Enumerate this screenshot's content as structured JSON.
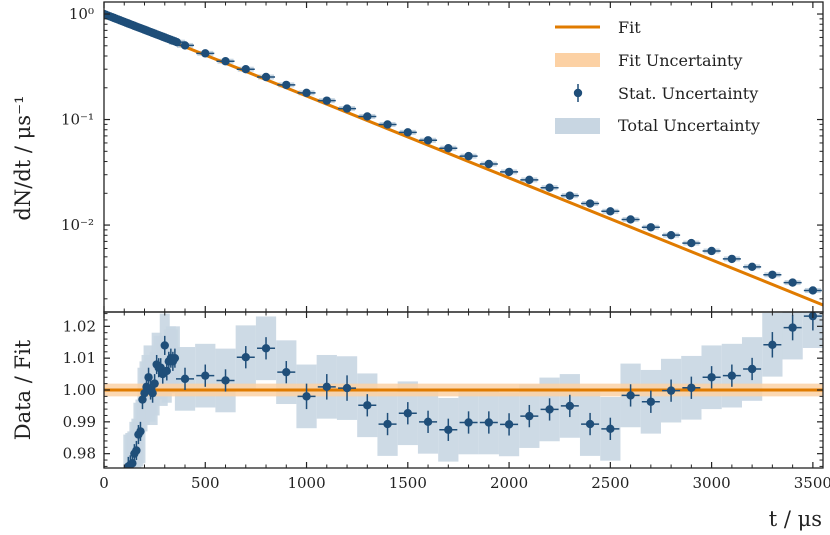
{
  "colors": {
    "fit": "#e07b00",
    "fit_band": "#fcd1a4",
    "stat": "#1f4e79",
    "total_band": "#c8d6e2",
    "axis": "#222222"
  },
  "chart_data": [
    {
      "type": "scatter",
      "panel": "top",
      "ylabel": "dN/dt / μs⁻¹",
      "yscale": "log",
      "ylim": [
        0.0015,
        1.3
      ],
      "xlim": [
        0,
        3550
      ],
      "y_tick_labels": [
        "10⁰",
        "10⁻¹",
        "10⁻²"
      ],
      "y_ticks": [
        1,
        0.1,
        0.01
      ],
      "fit_line": {
        "x": [
          0,
          3550
        ],
        "y": [
          1.0,
          0.00175
        ]
      },
      "series": [
        {
          "name": "Stat. Uncertainty",
          "x": [
            0,
            10,
            20,
            30,
            40,
            50,
            60,
            70,
            80,
            90,
            100,
            110,
            120,
            130,
            140,
            150,
            160,
            170,
            180,
            190,
            200,
            210,
            220,
            230,
            240,
            250,
            260,
            270,
            280,
            290,
            300,
            310,
            320,
            330,
            340,
            350,
            360,
            400,
            500,
            600,
            700,
            800,
            900,
            1000,
            1100,
            1200,
            1300,
            1400,
            1500,
            1600,
            1700,
            1800,
            1900,
            2000,
            2100,
            2200,
            2300,
            2400,
            2500,
            2600,
            2700,
            2800,
            2900,
            3000,
            3100,
            3200,
            3300,
            3400,
            3500
          ],
          "y": [
            1.0,
            0.982,
            0.965,
            0.949,
            0.933,
            0.917,
            0.901,
            0.886,
            0.871,
            0.856,
            0.841,
            0.827,
            0.813,
            0.799,
            0.786,
            0.772,
            0.759,
            0.747,
            0.734,
            0.722,
            0.71,
            0.698,
            0.686,
            0.675,
            0.663,
            0.652,
            0.641,
            0.63,
            0.62,
            0.609,
            0.599,
            0.589,
            0.579,
            0.57,
            0.56,
            0.551,
            0.541,
            0.504,
            0.424,
            0.357,
            0.3,
            0.253,
            0.213,
            0.179,
            0.151,
            0.127,
            0.107,
            0.0898,
            0.0756,
            0.0636,
            0.0535,
            0.045,
            0.0379,
            0.0319,
            0.0268,
            0.0226,
            0.019,
            0.016,
            0.0135,
            0.0113,
            0.00953,
            0.00802,
            0.00675,
            0.00568,
            0.00478,
            0.00402,
            0.00338,
            0.00285,
            0.0024
          ]
        }
      ]
    },
    {
      "type": "scatter",
      "panel": "bottom",
      "ylabel": "Data / Fit",
      "xlabel": "t / μs",
      "ylim": [
        0.9755,
        1.0245
      ],
      "xlim": [
        0,
        3550
      ],
      "y_tick_labels": [
        "0.98",
        "0.99",
        "1.00",
        "1.01",
        "1.02"
      ],
      "y_ticks": [
        0.98,
        0.99,
        1.0,
        1.01,
        1.02
      ],
      "x_tick_labels": [
        "0",
        "500",
        "1000",
        "1500",
        "2000",
        "2500",
        "3000",
        "3500"
      ],
      "x_ticks": [
        0,
        500,
        1000,
        1500,
        2000,
        2500,
        3000,
        3500
      ],
      "fit_line": {
        "x": [
          0,
          3550
        ],
        "y": [
          1.0,
          1.0
        ]
      },
      "fit_band": {
        "x": [
          0,
          3550
        ],
        "lo": [
          0.998,
          0.998
        ],
        "hi": [
          1.002,
          1.002
        ]
      },
      "series": [
        {
          "name": "Stat. Uncertainty",
          "x": [
            120,
            130,
            140,
            150,
            160,
            170,
            180,
            190,
            200,
            210,
            220,
            230,
            240,
            250,
            260,
            270,
            280,
            290,
            300,
            310,
            320,
            330,
            340,
            350,
            400,
            500,
            600,
            700,
            800,
            900,
            1000,
            1100,
            1200,
            1300,
            1400,
            1500,
            1600,
            1700,
            1800,
            1900,
            2000,
            2100,
            2200,
            2300,
            2400,
            2500,
            2600,
            2700,
            2800,
            2900,
            3000,
            3100,
            3200,
            3300,
            3400,
            3500
          ],
          "y": [
            0.976,
            0.9765,
            0.977,
            0.98,
            0.981,
            0.986,
            0.987,
            0.997,
            0.999,
            1.001,
            1.004,
            1.0,
            0.999,
            1.002,
            1.008,
            1.007,
            1.007,
            1.005,
            1.014,
            1.006,
            1.009,
            1.01,
            1.009,
            1.01,
            1.0035,
            1.0045,
            1.003,
            1.0103,
            1.0131,
            1.0056,
            0.998,
            1.001,
            1.0006,
            0.9952,
            0.9893,
            0.9927,
            0.99,
            0.9875,
            0.9898,
            0.9898,
            0.9892,
            0.9918,
            0.9939,
            0.995,
            0.9893,
            0.9878,
            0.9983,
            0.9963,
            0.9998,
            1.0007,
            1.004,
            1.0045,
            1.0066,
            1.0142,
            1.0196,
            1.0232
          ],
          "yerr": [
            0.003,
            0.003,
            0.003,
            0.003,
            0.003,
            0.003,
            0.003,
            0.003,
            0.003,
            0.003,
            0.003,
            0.003,
            0.003,
            0.003,
            0.003,
            0.003,
            0.003,
            0.003,
            0.003,
            0.003,
            0.003,
            0.003,
            0.003,
            0.003,
            0.0035,
            0.0035,
            0.0035,
            0.0035,
            0.0035,
            0.0035,
            0.004,
            0.004,
            0.004,
            0.0035,
            0.0035,
            0.0035,
            0.0035,
            0.0035,
            0.0035,
            0.0035,
            0.0035,
            0.0035,
            0.0035,
            0.0035,
            0.0035,
            0.0035,
            0.0035,
            0.0035,
            0.0035,
            0.0035,
            0.0035,
            0.0035,
            0.0035,
            0.004,
            0.004,
            0.0045
          ]
        }
      ],
      "total_band_width": 0.01
    }
  ],
  "legend": {
    "fit": "Fit",
    "fit_uncertainty": "Fit Uncertainty",
    "stat_uncertainty": "Stat. Uncertainty",
    "total_uncertainty": "Total Uncertainty",
    "placement": "top-right"
  },
  "labels": {
    "top_ylabel": "dN/dt  /  μs⁻¹",
    "bottom_ylabel": "Data / Fit",
    "xlabel": "t  /  μs"
  }
}
